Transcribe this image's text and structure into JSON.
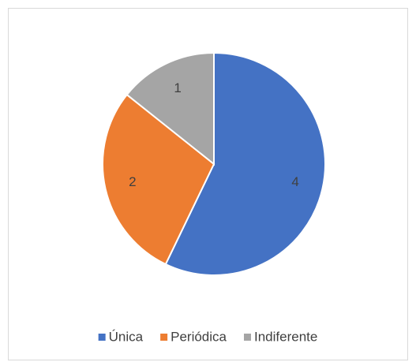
{
  "chart_data": {
    "type": "pie",
    "categories": [
      "Única",
      "Periódica",
      "Indiferente"
    ],
    "values": [
      4,
      2,
      1
    ],
    "colors": [
      "#4472c4",
      "#ed7d31",
      "#a5a5a5"
    ],
    "legend": "bottom"
  }
}
